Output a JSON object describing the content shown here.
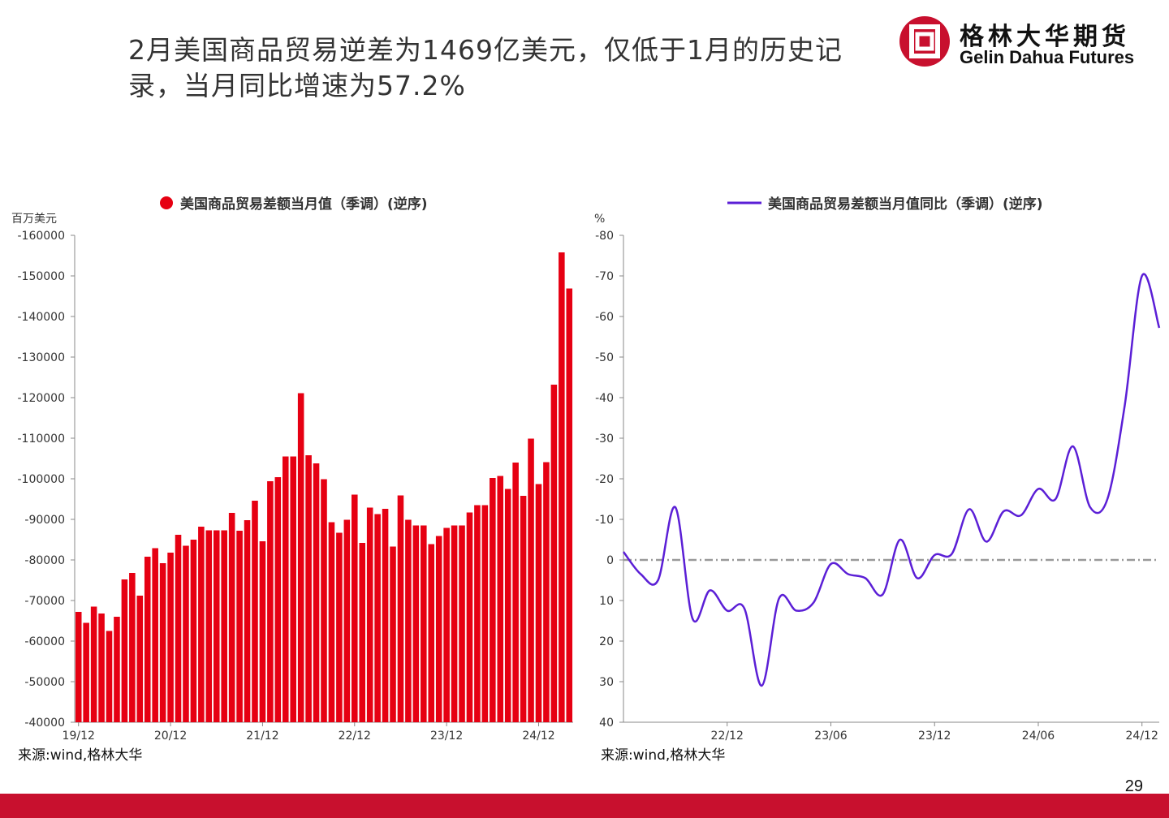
{
  "headline": {
    "line1": "2月美国商品贸易逆差为1469亿美元，仅低于1月的历史记",
    "line2": "录，当月同比增速为57.2%"
  },
  "logo": {
    "name_cn": "格林大华期货",
    "name_en": "Gelin Dahua Futures",
    "brand_color": "#c8102e"
  },
  "page_number": "29",
  "colors": {
    "bar": "#e60012",
    "line": "#5b1fd6",
    "zero_line": "#999999",
    "footer": "#c8102e"
  },
  "chart_data": [
    {
      "type": "bar",
      "legend": "美国商品贸易差额当月值（季调）(逆序)",
      "unit_label": "百万美元",
      "source": "来源:wind,格林大华",
      "y_inverted": true,
      "ylim": [
        -40000,
        -160000
      ],
      "yticks": [
        -160000,
        -150000,
        -140000,
        -130000,
        -120000,
        -110000,
        -100000,
        -90000,
        -80000,
        -70000,
        -60000,
        -50000,
        -40000
      ],
      "xtick_labels": [
        {
          "label": "19/12",
          "index": 0
        },
        {
          "label": "20/12",
          "index": 12
        },
        {
          "label": "21/12",
          "index": 24
        },
        {
          "label": "22/12",
          "index": 36
        },
        {
          "label": "23/12",
          "index": 48
        },
        {
          "label": "24/12",
          "index": 60
        }
      ],
      "values": [
        -67200,
        -64500,
        -68500,
        -66800,
        -62500,
        -66000,
        -75200,
        -76800,
        -71200,
        -80800,
        -82900,
        -79200,
        -81800,
        -86200,
        -83500,
        -85000,
        -88200,
        -87300,
        -87300,
        -87300,
        -91600,
        -87200,
        -89800,
        -94600,
        -84600,
        -99400,
        -100400,
        -105500,
        -105500,
        -121100,
        -105800,
        -103800,
        -99900,
        -89300,
        -86700,
        -89900,
        -96100,
        -84200,
        -92900,
        -91300,
        -92600,
        -83300,
        -95900,
        -89900,
        -88500,
        -88500,
        -83900,
        -85900,
        -87900,
        -88500,
        -88500,
        -91700,
        -93500,
        -93500,
        -100200,
        -100700,
        -97500,
        -104000,
        -95800,
        -109900,
        -98700,
        -104100,
        -123200,
        -155800,
        -146900
      ]
    },
    {
      "type": "line",
      "legend": "美国商品贸易差额当月值同比（季调）(逆序)",
      "unit_label": "%",
      "source": "来源:wind,格林大华",
      "y_inverted": true,
      "ylim": [
        40,
        -80
      ],
      "yticks": [
        -80,
        -70,
        -60,
        -50,
        -40,
        -30,
        -20,
        -10,
        0,
        10,
        20,
        30,
        40
      ],
      "xtick_labels": [
        {
          "label": "22/12",
          "index": 6
        },
        {
          "label": "23/06",
          "index": 12
        },
        {
          "label": "23/12",
          "index": 18
        },
        {
          "label": "24/06",
          "index": 24
        },
        {
          "label": "24/12",
          "index": 30
        }
      ],
      "x_count": 32,
      "values": [
        -2,
        3.5,
        5,
        -13,
        14.5,
        7.5,
        12.5,
        12,
        31,
        9.5,
        12.5,
        10.5,
        1,
        3.5,
        4.5,
        8.5,
        -5,
        4.5,
        -1.2,
        -1.5,
        -12.5,
        -4.5,
        -12,
        -11,
        -17.5,
        -15,
        -28,
        -13,
        -15,
        -38,
        -70,
        -57.2
      ],
      "zero_line": true
    }
  ]
}
